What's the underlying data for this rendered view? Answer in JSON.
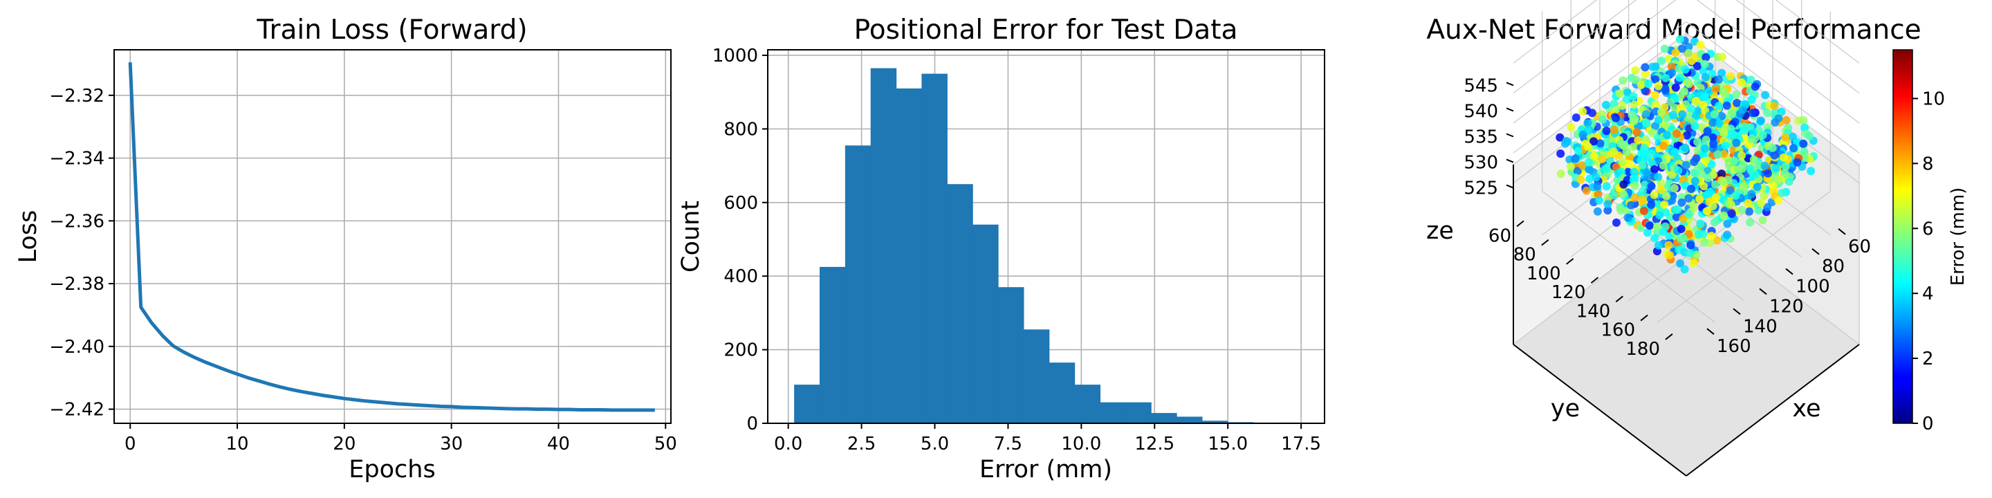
{
  "chart_data": [
    {
      "type": "line",
      "title": "Train Loss (Forward)",
      "xlabel": "Epochs",
      "ylabel": "Loss",
      "xlim": [
        -1.5,
        50.5
      ],
      "ylim": [
        -2.4245,
        -2.3055
      ],
      "xticks": [
        0,
        10,
        20,
        30,
        40,
        50
      ],
      "xtick_labels": [
        "0",
        "10",
        "20",
        "30",
        "40",
        "50"
      ],
      "yticks": [
        -2.32,
        -2.34,
        -2.36,
        -2.38,
        -2.4,
        -2.42
      ],
      "ytick_labels": [
        "−2.32",
        "−2.34",
        "−2.36",
        "−2.38",
        "−2.40",
        "−2.42"
      ],
      "grid": true,
      "color": "#1f77b4",
      "series": [
        {
          "x": [
            0,
            1,
            2,
            3,
            4,
            5,
            6,
            7,
            8,
            9,
            10,
            11,
            12,
            13,
            14,
            15,
            16,
            17,
            18,
            19,
            20,
            21,
            22,
            23,
            24,
            25,
            26,
            27,
            28,
            29,
            30,
            31,
            32,
            33,
            34,
            35,
            36,
            37,
            38,
            39,
            40,
            41,
            42,
            43,
            44,
            45,
            46,
            47,
            48,
            49
          ],
          "values": [
            -2.3095,
            -2.3875,
            -2.3925,
            -2.3965,
            -2.3998,
            -2.4018,
            -2.4035,
            -2.405,
            -2.4063,
            -2.4076,
            -2.4088,
            -2.41,
            -2.411,
            -2.412,
            -2.4129,
            -2.4137,
            -2.4144,
            -2.415,
            -2.4156,
            -2.4161,
            -2.4166,
            -2.417,
            -2.4174,
            -2.4177,
            -2.418,
            -2.4183,
            -2.4185,
            -2.4187,
            -2.4189,
            -2.4191,
            -2.4192,
            -2.4194,
            -2.4195,
            -2.4196,
            -2.4197,
            -2.4198,
            -2.4199,
            -2.4199,
            -2.42,
            -2.42,
            -2.4201,
            -2.4201,
            -2.4202,
            -2.4202,
            -2.4202,
            -2.4203,
            -2.4203,
            -2.4203,
            -2.4203,
            -2.4203
          ]
        }
      ]
    },
    {
      "type": "bar",
      "subtype": "histogram",
      "title": "Positional Error for Test Data",
      "xlabel": "Error (mm)",
      "ylabel": "Count",
      "xlim": [
        -0.7,
        18.3
      ],
      "ylim": [
        0,
        1015
      ],
      "xticks": [
        0,
        2.5,
        5,
        7.5,
        10,
        12.5,
        15,
        17.5
      ],
      "xtick_labels": [
        "0.0",
        "2.5",
        "5.0",
        "7.5",
        "10.0",
        "12.5",
        "15.0",
        "17.5"
      ],
      "yticks": [
        0,
        200,
        400,
        600,
        800,
        1000
      ],
      "ytick_labels": [
        "0",
        "200",
        "400",
        "600",
        "800",
        "1000"
      ],
      "grid": true,
      "color": "#1f77b4",
      "bin_edges": [
        0.2,
        1.07,
        1.94,
        2.81,
        3.68,
        4.55,
        5.42,
        6.29,
        7.16,
        8.03,
        8.9,
        9.77,
        10.64,
        11.51,
        12.38,
        13.25,
        14.12,
        14.99,
        15.86,
        16.73,
        17.6
      ],
      "values": [
        105,
        425,
        755,
        965,
        910,
        950,
        650,
        540,
        370,
        255,
        165,
        105,
        57,
        57,
        28,
        18,
        7,
        3,
        0,
        2
      ]
    },
    {
      "type": "scatter",
      "subtype": "3d",
      "title": "Aux-Net Forward Model Performance",
      "xlabel": "xe",
      "ylabel": "ye",
      "zlabel": "ze",
      "xticks": [
        "60",
        "80",
        "100",
        "120",
        "140",
        "160"
      ],
      "yticks": [
        "60",
        "80",
        "100",
        "120",
        "140",
        "160",
        "180"
      ],
      "zticks": [
        "525",
        "530",
        "535",
        "540",
        "545"
      ],
      "colormap": "jet",
      "colorbar": {
        "label": "Error (mm)",
        "range": [
          0,
          11.5
        ],
        "ticks": [
          "0",
          "2",
          "4",
          "6",
          "8",
          "10"
        ]
      }
    }
  ]
}
